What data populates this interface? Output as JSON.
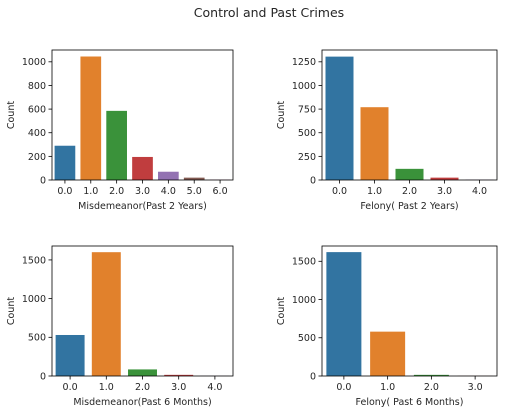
{
  "figure_title": "Control and Past Crimes",
  "chart_data": [
    {
      "type": "bar",
      "categories": [
        "0.0",
        "1.0",
        "2.0",
        "3.0",
        "4.0",
        "5.0",
        "6.0"
      ],
      "values": [
        290,
        1045,
        585,
        195,
        70,
        20,
        3
      ],
      "colors": [
        "#3274a1",
        "#e1812c",
        "#3a923a",
        "#c03d3e",
        "#9372b2",
        "#845b53",
        "#d684bd"
      ],
      "xlabel": "Misdemeanor(Past 2 Years)",
      "ylabel": "Count",
      "ylim": [
        0,
        1100
      ],
      "yticks": [
        0,
        200,
        400,
        600,
        800,
        1000
      ]
    },
    {
      "type": "bar",
      "categories": [
        "0.0",
        "1.0",
        "2.0",
        "3.0",
        "4.0"
      ],
      "values": [
        1305,
        770,
        118,
        25,
        3
      ],
      "colors": [
        "#3274a1",
        "#e1812c",
        "#3a923a",
        "#c03d3e",
        "#9372b2"
      ],
      "xlabel": "Felony( Past 2 Years)",
      "ylabel": "Count",
      "ylim": [
        0,
        1375
      ],
      "yticks": [
        0,
        250,
        500,
        750,
        1000,
        1250
      ]
    },
    {
      "type": "bar",
      "categories": [
        "0.0",
        "1.0",
        "2.0",
        "3.0",
        "4.0"
      ],
      "values": [
        530,
        1600,
        85,
        15,
        2
      ],
      "colors": [
        "#3274a1",
        "#e1812c",
        "#3a923a",
        "#c03d3e",
        "#9372b2"
      ],
      "xlabel": "Misdemeanor(Past 6 Months)",
      "ylabel": "Count",
      "ylim": [
        0,
        1680
      ],
      "yticks": [
        0,
        500,
        1000,
        1500
      ]
    },
    {
      "type": "bar",
      "categories": [
        "0.0",
        "1.0",
        "2.0",
        "3.0"
      ],
      "values": [
        1620,
        580,
        15,
        2
      ],
      "colors": [
        "#3274a1",
        "#e1812c",
        "#3a923a",
        "#c03d3e"
      ],
      "xlabel": "Felony( Past 6 Months)",
      "ylabel": "Count",
      "ylim": [
        0,
        1700
      ],
      "yticks": [
        0,
        500,
        1000,
        1500
      ]
    }
  ]
}
